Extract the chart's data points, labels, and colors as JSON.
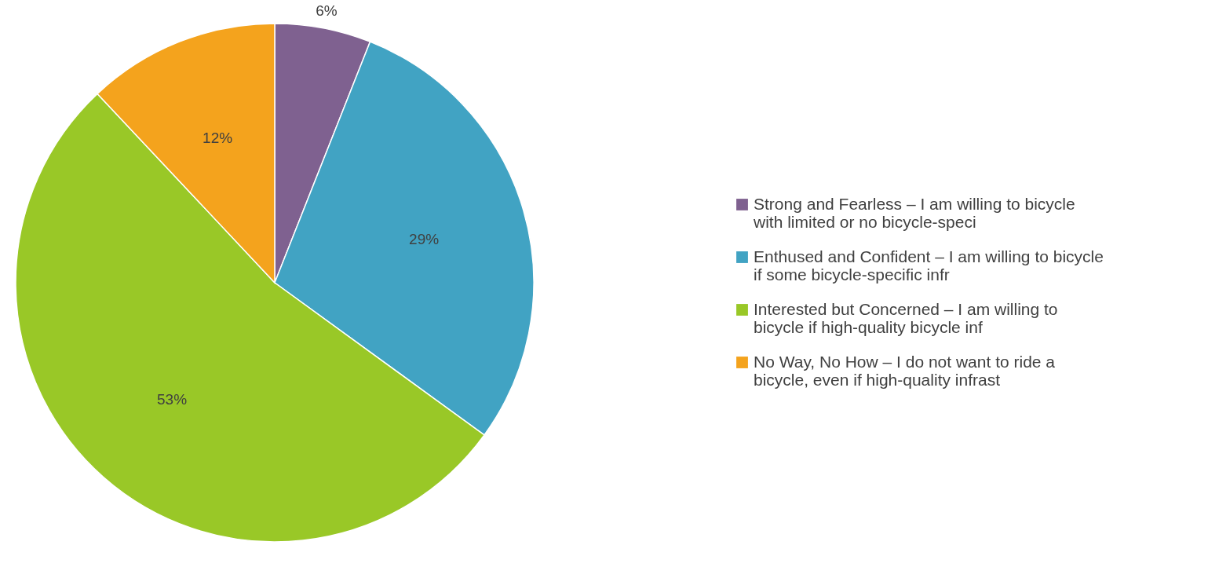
{
  "chart_data": {
    "type": "pie",
    "categories": [
      "Strong and Fearless – I am willing to bicycle with limited or no bicycle-speci",
      "Enthused and Confident – I am willing to bicycle if some bicycle-specific infr",
      "Interested but Concerned – I am willing to bicycle if high-quality bicycle inf",
      "No Way, No How – I do not want to ride a bicycle, even if high-quality infrast"
    ],
    "values": [
      6,
      29,
      53,
      12
    ],
    "colors": [
      "#7f6190",
      "#41a3c3",
      "#99c827",
      "#f4a31d"
    ],
    "value_labels": [
      "6%",
      "29%",
      "53%",
      "12%"
    ],
    "legend": "right"
  }
}
